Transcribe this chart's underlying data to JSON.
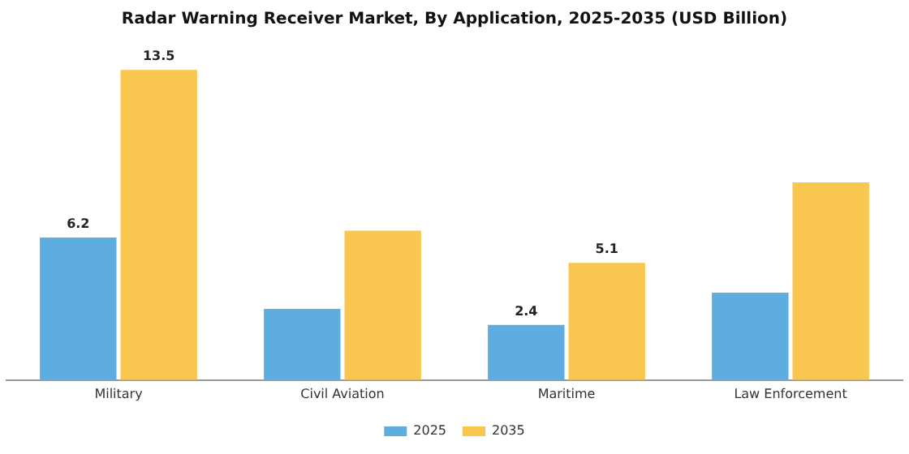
{
  "chart_data": {
    "type": "bar",
    "title": "Radar Warning Receiver Market, By Application, 2025-2035 (USD Billion)",
    "categories": [
      "Military",
      "Civil Aviation",
      "Maritime",
      "Law Enforcement"
    ],
    "series": [
      {
        "name": "2025",
        "color": "#5dade2",
        "values": [
          6.2,
          3.1,
          2.4,
          3.8
        ],
        "value_labels": [
          "6.2",
          null,
          "2.4",
          null
        ]
      },
      {
        "name": "2035",
        "color": "#f9c74f",
        "values": [
          13.5,
          6.5,
          5.1,
          8.6
        ],
        "value_labels": [
          "13.5",
          null,
          "5.1",
          null
        ]
      }
    ],
    "legend": "bottom",
    "grid": false
  }
}
